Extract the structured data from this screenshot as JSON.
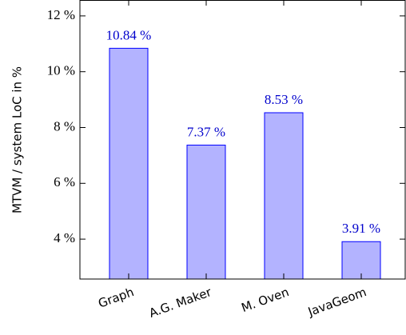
{
  "chart_data": {
    "type": "bar",
    "y_label": "MTVM / system LoC in %",
    "categories": [
      "Graph",
      "A.G. Maker",
      "M. Oven",
      "JavaGeom"
    ],
    "values": [
      10.84,
      7.37,
      8.53,
      3.91
    ],
    "value_labels": [
      "10.84 %",
      "7.37 %",
      "8.53 %",
      "3.91 %"
    ],
    "color": "#b3b3ff",
    "edge_color": "#0000ff",
    "label_color": "#0000cc",
    "ylim": [
      2.57,
      12.57
    ],
    "yticks": [
      {
        "value": 4,
        "label": "4 %"
      },
      {
        "value": 6,
        "label": "6 %"
      },
      {
        "value": 8,
        "label": "8 %"
      },
      {
        "value": 10,
        "label": "10 %"
      },
      {
        "value": 12,
        "label": "12 %"
      }
    ]
  }
}
